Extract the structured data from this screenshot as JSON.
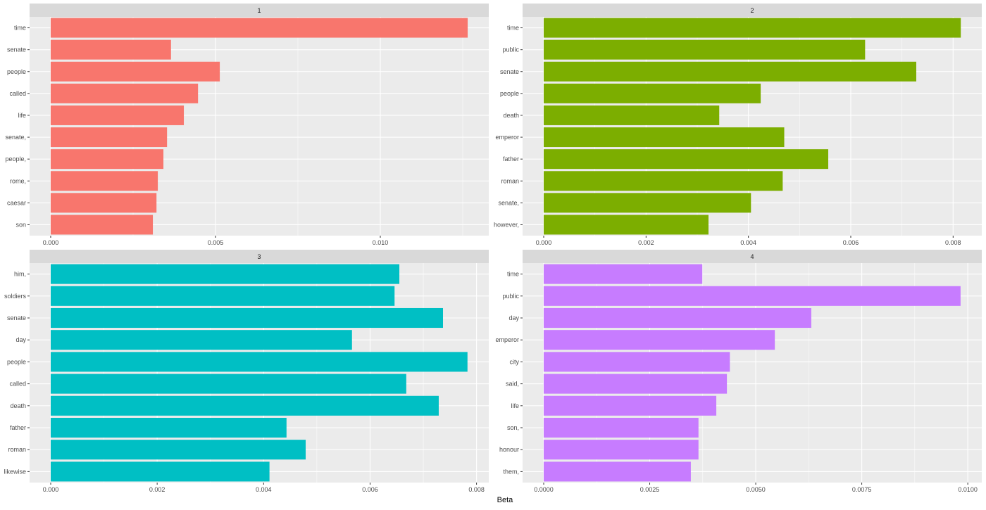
{
  "chart_data": [
    {
      "type": "bar",
      "orientation": "horizontal",
      "facet_label": "1",
      "color": "#F8766D",
      "categories": [
        "time",
        "senate",
        "people",
        "called",
        "life",
        "senate,",
        "people,",
        "rome,",
        "caesar",
        "son"
      ],
      "values": [
        0.01265,
        0.00365,
        0.00513,
        0.00447,
        0.00404,
        0.00353,
        0.00342,
        0.00325,
        0.00321,
        0.0031
      ],
      "xlim": [
        -0.00064,
        0.01329
      ],
      "xticks": [
        0,
        0.005,
        0.01
      ],
      "xtick_labels": [
        "0.000",
        "0.005",
        "0.010"
      ],
      "grid": true
    },
    {
      "type": "bar",
      "orientation": "horizontal",
      "facet_label": "2",
      "color": "#7CAE00",
      "categories": [
        "time",
        "public",
        "senate",
        "people",
        "death",
        "emperor",
        "father",
        "roman",
        "senate,",
        "however,"
      ],
      "values": [
        0.00815,
        0.00628,
        0.00728,
        0.00424,
        0.00343,
        0.0047,
        0.00556,
        0.00467,
        0.00405,
        0.00322
      ],
      "xlim": [
        -0.000413,
        0.00856
      ],
      "xticks": [
        0,
        0.002,
        0.004,
        0.006,
        0.008
      ],
      "xtick_labels": [
        "0.000",
        "0.002",
        "0.004",
        "0.006",
        "0.008"
      ],
      "grid": true
    },
    {
      "type": "bar",
      "orientation": "horizontal",
      "facet_label": "3",
      "color": "#00BFC4",
      "categories": [
        "him,",
        "soldiers",
        "senate",
        "day",
        "people",
        "called",
        "death",
        "father",
        "roman",
        "likewise"
      ],
      "values": [
        0.00655,
        0.00646,
        0.00737,
        0.00566,
        0.00783,
        0.00668,
        0.00729,
        0.00443,
        0.00479,
        0.00411
      ],
      "xlim": [
        -0.000397,
        0.00823
      ],
      "xticks": [
        0,
        0.002,
        0.004,
        0.006,
        0.008
      ],
      "xtick_labels": [
        "0.000",
        "0.002",
        "0.004",
        "0.006",
        "0.008"
      ],
      "grid": true
    },
    {
      "type": "bar",
      "orientation": "horizontal",
      "facet_label": "4",
      "color": "#C77CFF",
      "categories": [
        "time",
        "public",
        "day",
        "emperor",
        "city",
        "said,",
        "life",
        "son,",
        "honour",
        "them,"
      ],
      "values": [
        0.00374,
        0.00983,
        0.00631,
        0.00545,
        0.00439,
        0.00432,
        0.00407,
        0.00365,
        0.00365,
        0.00347
      ],
      "xlim": [
        -0.000498,
        0.01033
      ],
      "xticks": [
        0,
        0.0025,
        0.005,
        0.0075,
        0.01
      ],
      "xtick_labels": [
        "0.0000",
        "0.0025",
        "0.0050",
        "0.0075",
        "0.0100"
      ],
      "grid": true
    }
  ],
  "xlabel": "Beta"
}
